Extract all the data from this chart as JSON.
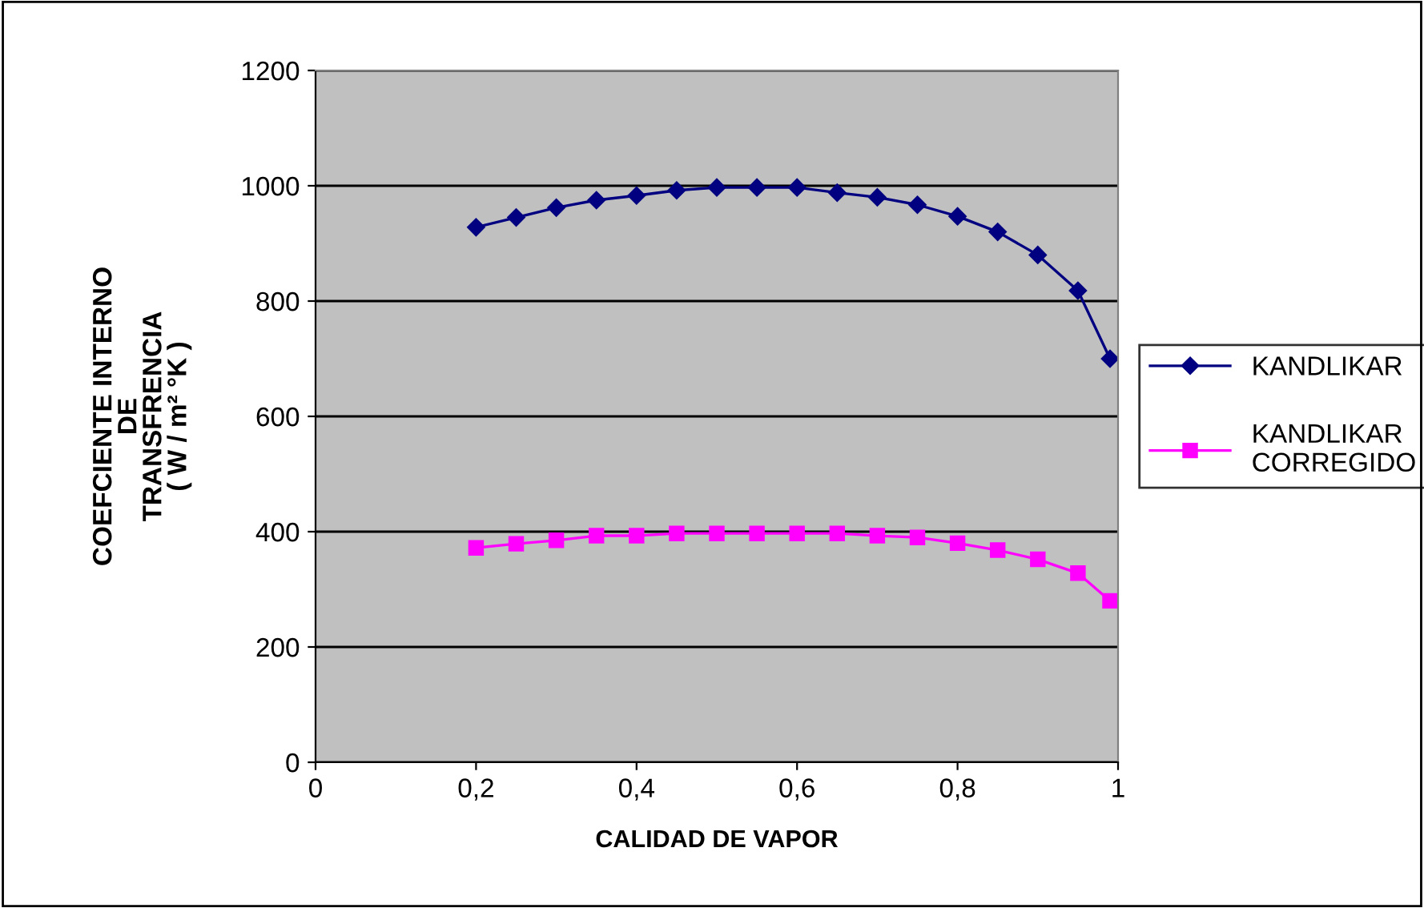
{
  "chart_data": {
    "type": "line",
    "xlabel": "CALIDAD DE VAPOR",
    "ylabel": "COEFCIENTE INTERNO\nDE\nTRANSFRENCIA\n( W / m² °K )",
    "x": [
      0.2,
      0.25,
      0.3,
      0.35,
      0.4,
      0.45,
      0.5,
      0.55,
      0.6,
      0.65,
      0.7,
      0.75,
      0.8,
      0.85,
      0.9,
      0.95,
      0.99
    ],
    "series": [
      {
        "name": "KANDLIKAR",
        "color": "#000080",
        "marker": "diamond",
        "values": [
          928,
          945,
          962,
          975,
          983,
          992,
          997,
          997,
          997,
          988,
          980,
          967,
          947,
          920,
          880,
          818,
          700
        ]
      },
      {
        "name": "KANDLIKAR\nCORREGIDO",
        "color": "#ff00ff",
        "marker": "square",
        "values": [
          372,
          379,
          385,
          393,
          393,
          397,
          397,
          397,
          397,
          397,
          393,
          390,
          380,
          368,
          352,
          328,
          280
        ]
      }
    ],
    "xlim": [
      0,
      1
    ],
    "xticks": [
      0,
      {
        "value": 0.2,
        "label": "0,2"
      },
      {
        "value": 0.4,
        "label": "0,4"
      },
      {
        "value": 0.6,
        "label": "0,6"
      },
      {
        "value": 0.8,
        "label": "0,8"
      },
      1
    ],
    "ylim": [
      0,
      1200
    ],
    "yticks": [
      0,
      200,
      400,
      600,
      800,
      1000,
      1200
    ],
    "grid": "y",
    "legend": "right",
    "line_style": "solid"
  }
}
